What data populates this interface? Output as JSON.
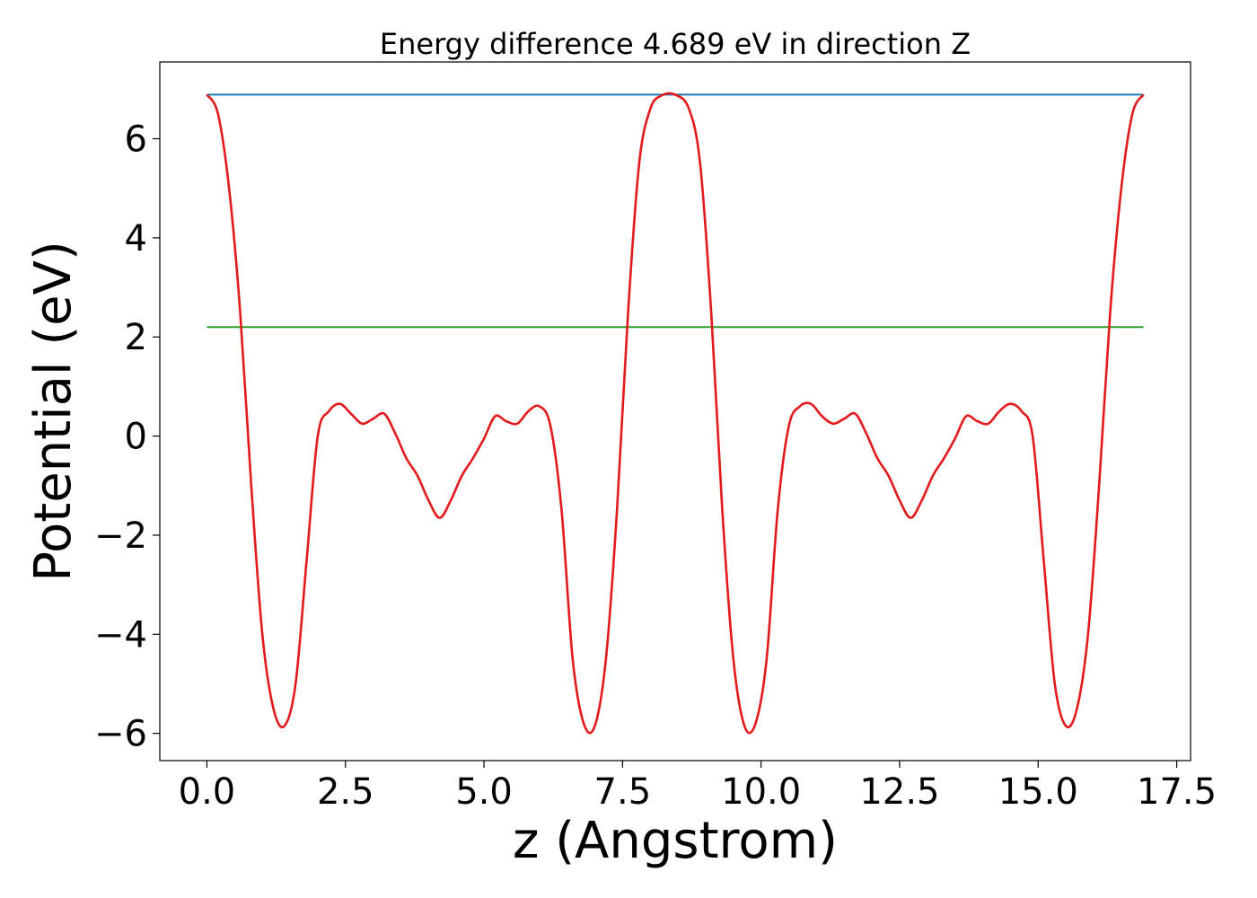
{
  "chart_data": {
    "type": "line",
    "title": "Energy difference 4.689 eV in direction Z",
    "xlabel": "z (Angstrom)",
    "ylabel": "Potential (eV)",
    "xlim": [
      -0.85,
      17.75
    ],
    "ylim": [
      -6.55,
      7.55
    ],
    "xticks": [
      0.0,
      2.5,
      5.0,
      7.5,
      10.0,
      12.5,
      15.0,
      17.5
    ],
    "xtick_labels": [
      "0.0",
      "2.5",
      "5.0",
      "7.5",
      "10.0",
      "12.5",
      "15.0",
      "17.5"
    ],
    "yticks": [
      -6,
      -4,
      -2,
      0,
      2,
      4,
      6
    ],
    "ytick_labels": [
      "−6",
      "−4",
      "−2",
      "0",
      "2",
      "4",
      "6"
    ],
    "grid": false,
    "series": [
      {
        "color": "#1f77b4",
        "x": [
          0.0,
          16.9
        ],
        "y": [
          6.89,
          6.89
        ]
      },
      {
        "color": "#2ca02c",
        "x": [
          0.0,
          16.9
        ],
        "y": [
          2.2,
          2.2
        ]
      },
      {
        "color": "#e31a1c",
        "x": [
          0.0,
          0.2,
          0.4,
          0.6,
          0.8,
          1.0,
          1.2,
          1.4,
          1.6,
          1.8,
          2.0,
          2.2,
          2.4,
          2.6,
          2.8,
          3.0,
          3.2,
          3.4,
          3.6,
          3.8,
          4.0,
          4.2,
          4.4,
          4.6,
          4.8,
          5.0,
          5.2,
          5.4,
          5.6,
          5.8,
          6.0,
          6.2,
          6.4,
          6.6,
          6.8,
          7.0,
          7.2,
          7.4,
          7.6,
          7.8,
          8.0,
          8.2,
          8.45,
          8.7,
          8.9,
          9.1,
          9.3,
          9.5,
          9.7,
          9.9,
          10.1,
          10.3,
          10.5,
          10.7,
          10.9,
          11.1,
          11.3,
          11.5,
          11.7,
          11.9,
          12.1,
          12.3,
          12.5,
          12.7,
          12.9,
          13.1,
          13.3,
          13.5,
          13.7,
          13.9,
          14.1,
          14.3,
          14.5,
          14.7,
          14.9,
          15.1,
          15.3,
          15.5,
          15.7,
          15.9,
          16.1,
          16.3,
          16.5,
          16.7,
          16.9
        ],
        "y": [
          6.89,
          6.5,
          5.0,
          2.5,
          -1.0,
          -4.0,
          -5.5,
          -5.85,
          -5.0,
          -2.5,
          0.0,
          0.5,
          0.65,
          0.45,
          0.25,
          0.35,
          0.45,
          0.05,
          -0.45,
          -0.8,
          -1.3,
          -1.65,
          -1.3,
          -0.8,
          -0.45,
          -0.05,
          0.4,
          0.3,
          0.25,
          0.5,
          0.6,
          0.2,
          -1.5,
          -4.5,
          -5.8,
          -5.85,
          -4.5,
          -1.5,
          2.5,
          5.5,
          6.6,
          6.87,
          6.89,
          6.6,
          5.5,
          2.5,
          -1.5,
          -4.5,
          -5.85,
          -5.8,
          -4.5,
          -1.5,
          0.2,
          0.6,
          0.65,
          0.4,
          0.25,
          0.35,
          0.45,
          0.05,
          -0.45,
          -0.8,
          -1.3,
          -1.65,
          -1.3,
          -0.8,
          -0.45,
          -0.05,
          0.4,
          0.3,
          0.25,
          0.5,
          0.65,
          0.5,
          0.0,
          -2.5,
          -5.0,
          -5.85,
          -5.5,
          -4.0,
          -1.0,
          2.5,
          5.0,
          6.5,
          6.89
        ]
      }
    ]
  }
}
